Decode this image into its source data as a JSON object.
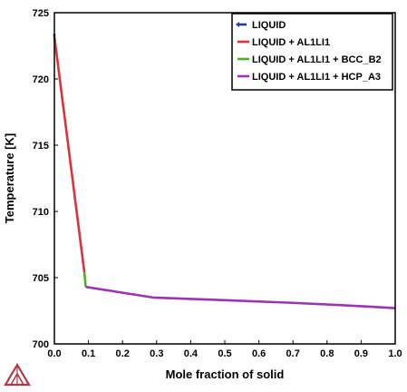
{
  "chart_data": {
    "type": "line",
    "xlabel": "Mole fraction of solid",
    "ylabel": "Temperature [K]",
    "xlim": [
      0.0,
      1.0
    ],
    "ylim": [
      700,
      725
    ],
    "x_ticks": [
      "0.0",
      "0.1",
      "0.2",
      "0.3",
      "0.4",
      "0.5",
      "0.6",
      "0.7",
      "0.8",
      "0.9",
      "1.0"
    ],
    "y_ticks": [
      "700",
      "705",
      "710",
      "715",
      "720",
      "725"
    ],
    "grid": false,
    "legend_position": "top-right",
    "series": [
      {
        "name": "LIQUID",
        "color": "#1f3f99",
        "x": [
          0.0,
          0.0
        ],
        "y": [
          723.4,
          723.2
        ]
      },
      {
        "name": "LIQUID + AL1LI1",
        "color": "#e0303a",
        "x": [
          0.0,
          0.088
        ],
        "y": [
          723.2,
          705.4
        ]
      },
      {
        "name": "LIQUID + AL1LI1 + BCC_B2",
        "color": "#4caf2e",
        "x": [
          0.088,
          0.092
        ],
        "y": [
          705.4,
          704.3
        ]
      },
      {
        "name": "LIQUID + AL1LI1 + HCP_A3",
        "color": "#9b35b5",
        "x": [
          0.092,
          0.29,
          0.5,
          0.7,
          0.9,
          1.0
        ],
        "y": [
          704.3,
          703.5,
          703.3,
          703.1,
          702.85,
          702.7
        ]
      }
    ]
  },
  "logo": {
    "icon": "thermo-calc-logo-icon",
    "color": "#b03a48"
  }
}
